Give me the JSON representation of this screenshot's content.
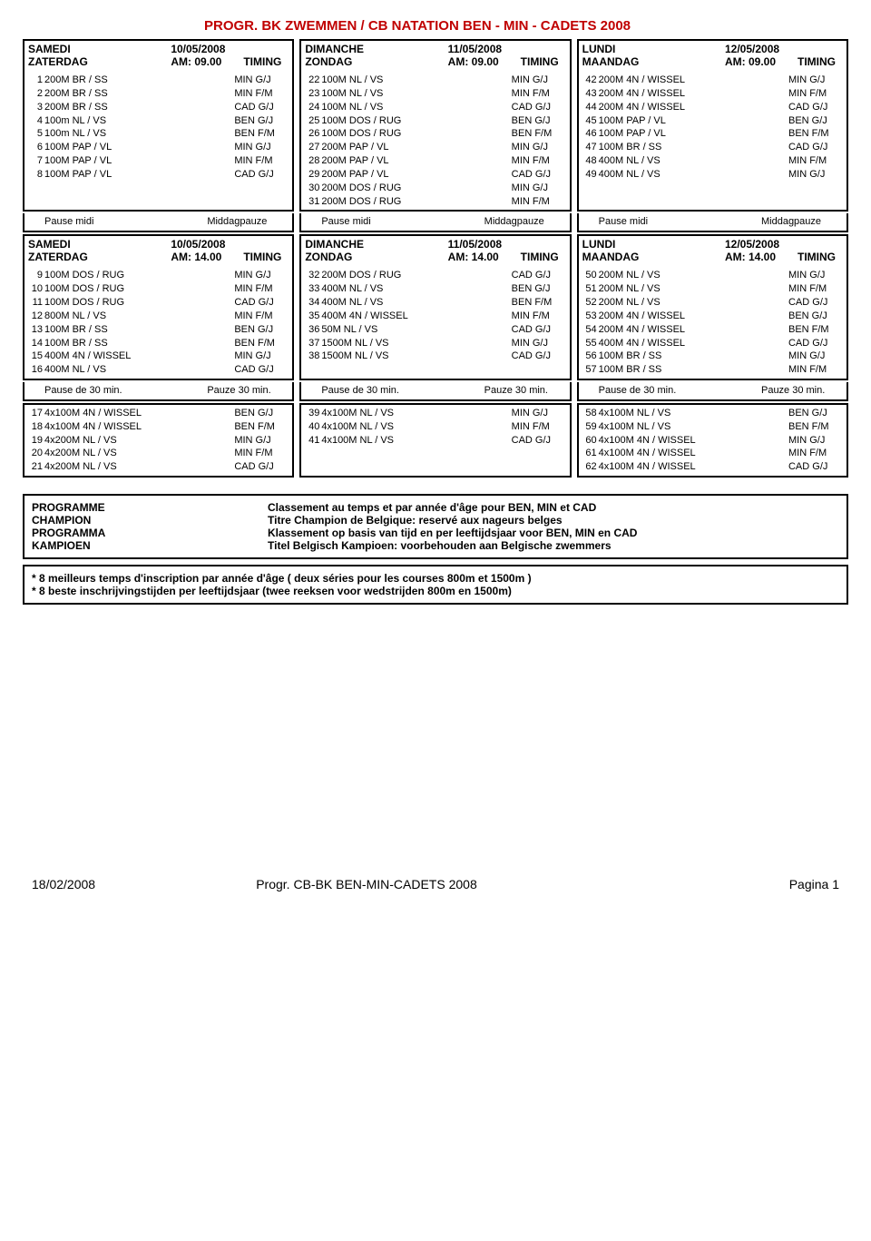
{
  "title": "PROGR. BK ZWEMMEN / CB NATATION BEN - MIN - CADETS 2008",
  "sessions": [
    {
      "cols": [
        {
          "day1": "SAMEDI",
          "day2": "ZATERDAG",
          "date": "10/05/2008",
          "time": "AM: 09.00",
          "timing": "TIMING",
          "rows": [
            {
              "n": "1",
              "e": "200M BR / SS",
              "c": "MIN G/J"
            },
            {
              "n": "2",
              "e": "200M BR / SS",
              "c": "MIN F/M"
            },
            {
              "n": "3",
              "e": "200M BR / SS",
              "c": "CAD G/J"
            },
            {
              "n": "4",
              "e": "100m NL / VS",
              "c": "BEN G/J"
            },
            {
              "n": "5",
              "e": "100m NL / VS",
              "c": "BEN F/M"
            },
            {
              "n": "6",
              "e": "100M PAP / VL",
              "c": "MIN G/J"
            },
            {
              "n": "7",
              "e": "100M PAP / VL",
              "c": "MIN F/M"
            },
            {
              "n": "8",
              "e": "100M PAP / VL",
              "c": "CAD G/J"
            }
          ]
        },
        {
          "day1": "DIMANCHE",
          "day2": "ZONDAG",
          "date": "11/05/2008",
          "time": "AM: 09.00",
          "timing": "TIMING",
          "rows": [
            {
              "n": "22",
              "e": "100M NL / VS",
              "c": "MIN G/J"
            },
            {
              "n": "23",
              "e": "100M NL / VS",
              "c": "MIN F/M"
            },
            {
              "n": "24",
              "e": "100M NL / VS",
              "c": "CAD G/J"
            },
            {
              "n": "25",
              "e": "100M DOS / RUG",
              "c": "BEN G/J"
            },
            {
              "n": "26",
              "e": "100M DOS / RUG",
              "c": "BEN F/M"
            },
            {
              "n": "27",
              "e": "200M PAP / VL",
              "c": "MIN G/J"
            },
            {
              "n": "28",
              "e": "200M PAP / VL",
              "c": "MIN F/M"
            },
            {
              "n": "29",
              "e": "200M PAP / VL",
              "c": "CAD G/J"
            },
            {
              "n": "30",
              "e": "200M DOS / RUG",
              "c": "MIN G/J"
            },
            {
              "n": "31",
              "e": "200M DOS / RUG",
              "c": "MIN F/M"
            }
          ]
        },
        {
          "day1": "LUNDI",
          "day2": "MAANDAG",
          "date": "12/05/2008",
          "time": "AM: 09.00",
          "timing": "TIMING",
          "rows": [
            {
              "n": "42",
              "e": "200M 4N / WISSEL",
              "c": "MIN G/J"
            },
            {
              "n": "43",
              "e": "200M 4N / WISSEL",
              "c": "MIN F/M"
            },
            {
              "n": "44",
              "e": "200M 4N / WISSEL",
              "c": "CAD G/J"
            },
            {
              "n": "45",
              "e": "100M PAP / VL",
              "c": "BEN G/J"
            },
            {
              "n": "46",
              "e": "100M PAP / VL",
              "c": "BEN F/M"
            },
            {
              "n": "47",
              "e": "100M BR / SS",
              "c": "CAD G/J"
            },
            {
              "n": "48",
              "e": "400M NL / VS",
              "c": "MIN F/M"
            },
            {
              "n": "49",
              "e": "400M NL / VS",
              "c": "MIN G/J"
            }
          ]
        }
      ],
      "pause": [
        "Pause midi",
        "Middagpauze",
        "Pause midi",
        "Middagpauze",
        "Pause midi",
        "Middagpauze"
      ]
    },
    {
      "cols": [
        {
          "day1": "SAMEDI",
          "day2": "ZATERDAG",
          "date": "10/05/2008",
          "time": "AM: 14.00",
          "timing": "TIMING",
          "rows": [
            {
              "n": "9",
              "e": "100M DOS / RUG",
              "c": "MIN G/J"
            },
            {
              "n": "10",
              "e": "100M DOS / RUG",
              "c": "MIN F/M"
            },
            {
              "n": "11",
              "e": "100M DOS / RUG",
              "c": "CAD G/J"
            },
            {
              "n": "12",
              "e": "800M NL / VS",
              "c": "MIN F/M"
            },
            {
              "n": "13",
              "e": "100M BR / SS",
              "c": "BEN G/J"
            },
            {
              "n": "14",
              "e": "100M BR / SS",
              "c": "BEN F/M"
            },
            {
              "n": "15",
              "e": "400M 4N / WISSEL",
              "c": "MIN G/J"
            },
            {
              "n": "16",
              "e": "400M NL / VS",
              "c": "CAD G/J"
            }
          ]
        },
        {
          "day1": "DIMANCHE",
          "day2": "ZONDAG",
          "date": "11/05/2008",
          "time": "AM: 14.00",
          "timing": "TIMING",
          "rows": [
            {
              "n": "32",
              "e": "200M DOS / RUG",
              "c": "CAD G/J"
            },
            {
              "n": "33",
              "e": "400M NL / VS",
              "c": "BEN G/J"
            },
            {
              "n": "34",
              "e": "400M NL / VS",
              "c": "BEN F/M"
            },
            {
              "n": "35",
              "e": "400M 4N / WISSEL",
              "c": "MIN F/M"
            },
            {
              "n": "36",
              "e": "50M NL / VS",
              "c": "CAD G/J"
            },
            {
              "n": "37",
              "e": "1500M NL / VS",
              "c": "MIN G/J"
            },
            {
              "n": "38",
              "e": "1500M NL / VS",
              "c": "CAD G/J"
            }
          ]
        },
        {
          "day1": "LUNDI",
          "day2": "MAANDAG",
          "date": "12/05/2008",
          "time": "AM: 14.00",
          "timing": "TIMING",
          "rows": [
            {
              "n": "50",
              "e": "200M NL / VS",
              "c": "MIN G/J"
            },
            {
              "n": "51",
              "e": "200M NL / VS",
              "c": "MIN F/M"
            },
            {
              "n": "52",
              "e": "200M NL / VS",
              "c": "CAD G/J"
            },
            {
              "n": "53",
              "e": "200M 4N / WISSEL",
              "c": "BEN G/J"
            },
            {
              "n": "54",
              "e": "200M 4N / WISSEL",
              "c": "BEN F/M"
            },
            {
              "n": "55",
              "e": "400M 4N / WISSEL",
              "c": "CAD G/J"
            },
            {
              "n": "56",
              "e": "100M BR / SS",
              "c": "MIN G/J"
            },
            {
              "n": "57",
              "e": "100M BR / SS",
              "c": "MIN F/M"
            }
          ]
        }
      ],
      "pause": [
        "Pause de 30 min.",
        "Pauze 30 min.",
        "Pause de 30 min.",
        "Pauze 30 min.",
        "Pause de 30 min.",
        "Pauze 30 min."
      ]
    },
    {
      "cols": [
        {
          "rows": [
            {
              "n": "17",
              "e": "4x100M 4N / WISSEL",
              "c": "BEN G/J"
            },
            {
              "n": "18",
              "e": "4x100M 4N / WISSEL",
              "c": "BEN F/M"
            },
            {
              "n": "19",
              "e": "4x200M NL / VS",
              "c": "MIN G/J"
            },
            {
              "n": "20",
              "e": "4x200M NL / VS",
              "c": "MIN F/M"
            },
            {
              "n": "21",
              "e": "4x200M NL / VS",
              "c": "CAD G/J"
            }
          ]
        },
        {
          "rows": [
            {
              "n": "39",
              "e": "4x100M NL / VS",
              "c": "MIN G/J"
            },
            {
              "n": "40",
              "e": "4x100M NL / VS",
              "c": "MIN F/M"
            },
            {
              "n": "41",
              "e": "4x100M NL / VS",
              "c": "CAD G/J"
            }
          ]
        },
        {
          "rows": [
            {
              "n": "58",
              "e": "4x100M NL / VS",
              "c": "BEN G/J"
            },
            {
              "n": "59",
              "e": "4x100M NL / VS",
              "c": "BEN F/M"
            },
            {
              "n": "60",
              "e": "4x100M 4N / WISSEL",
              "c": "MIN G/J"
            },
            {
              "n": "61",
              "e": "4x100M 4N / WISSEL",
              "c": "MIN F/M"
            },
            {
              "n": "62",
              "e": "4x100M 4N / WISSEL",
              "c": "CAD G/J"
            }
          ]
        }
      ]
    }
  ],
  "programme": {
    "left": [
      "PROGRAMME",
      "CHAMPION",
      "PROGRAMMA",
      "KAMPIOEN"
    ],
    "right": [
      "Classement au temps et par année d'âge pour BEN, MIN et CAD",
      "Titre Champion de Belgique: reservé aux nageurs belges",
      "Klassement op basis van tijd en per leeftijdsjaar voor BEN, MIN en CAD",
      "Titel Belgisch Kampioen: voorbehouden aan Belgische zwemmers"
    ]
  },
  "notes": [
    "* 8 meilleurs temps d'inscription par année d'âge ( deux séries pour les courses 800m et 1500m )",
    "* 8 beste inschrijvingstijden per leeftijdsjaar (twee reeksen voor wedstrijden 800m en 1500m)"
  ],
  "footer": {
    "left": "18/02/2008",
    "center": "Progr. CB-BK BEN-MIN-CADETS 2008",
    "right": "Pagina 1"
  }
}
